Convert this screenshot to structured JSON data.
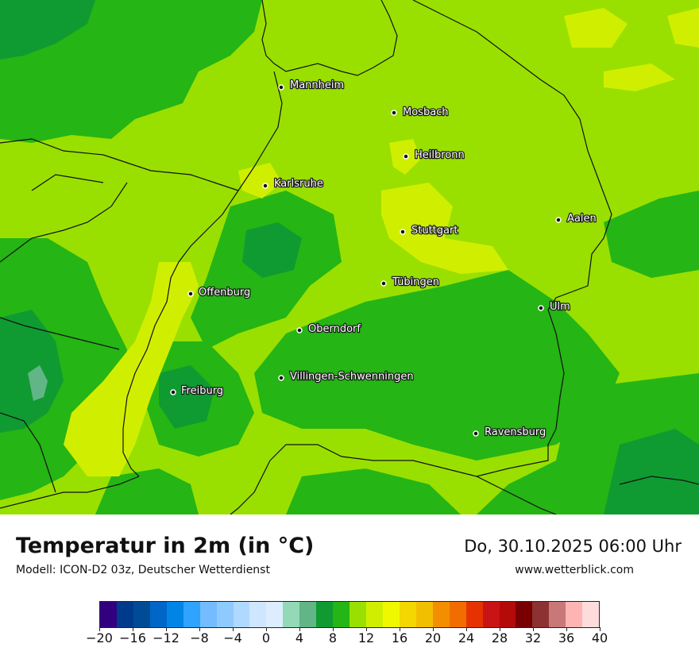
{
  "map": {
    "cities": [
      {
        "name": "Mannheim"
      },
      {
        "name": "Mosbach"
      },
      {
        "name": "Heilbronn"
      },
      {
        "name": "Karlsruhe"
      },
      {
        "name": "Aalen"
      },
      {
        "name": "Stuttgart"
      },
      {
        "name": "Tübingen"
      },
      {
        "name": "Offenburg"
      },
      {
        "name": "Ulm"
      },
      {
        "name": "Oberndorf"
      },
      {
        "name": "Villingen-Schwenningen"
      },
      {
        "name": "Freiburg"
      },
      {
        "name": "Ravensburg"
      }
    ]
  },
  "footer": {
    "title": "Temperatur in 2m (in °C)",
    "subtitle": "Modell: ICON-D2 03z, Deutscher Wetterdienst",
    "datetime": "Do, 30.10.2025 06:00 Uhr",
    "website": "www.wetterblick.com"
  },
  "legend": {
    "colors": [
      "#32007f",
      "#003a8c",
      "#004b96",
      "#0066c8",
      "#0085e6",
      "#2ea3ff",
      "#73bcff",
      "#8fcaff",
      "#b0d9ff",
      "#cfe6ff",
      "#dcedff",
      "#93d9b8",
      "#62b586",
      "#0f9b32",
      "#25b515",
      "#99e000",
      "#d0ef00",
      "#f0f800",
      "#f2d700",
      "#f2bf00",
      "#f28e00",
      "#f26d00",
      "#e63200",
      "#c81414",
      "#b40a0a",
      "#780000",
      "#8c3232",
      "#c87878",
      "#ffb4b4",
      "#ffdcdc"
    ],
    "tick_labels": [
      "−20",
      "−16",
      "−12",
      "−8",
      "−4",
      "0",
      "4",
      "8",
      "12",
      "16",
      "20",
      "24",
      "28",
      "32",
      "36",
      "40"
    ]
  }
}
